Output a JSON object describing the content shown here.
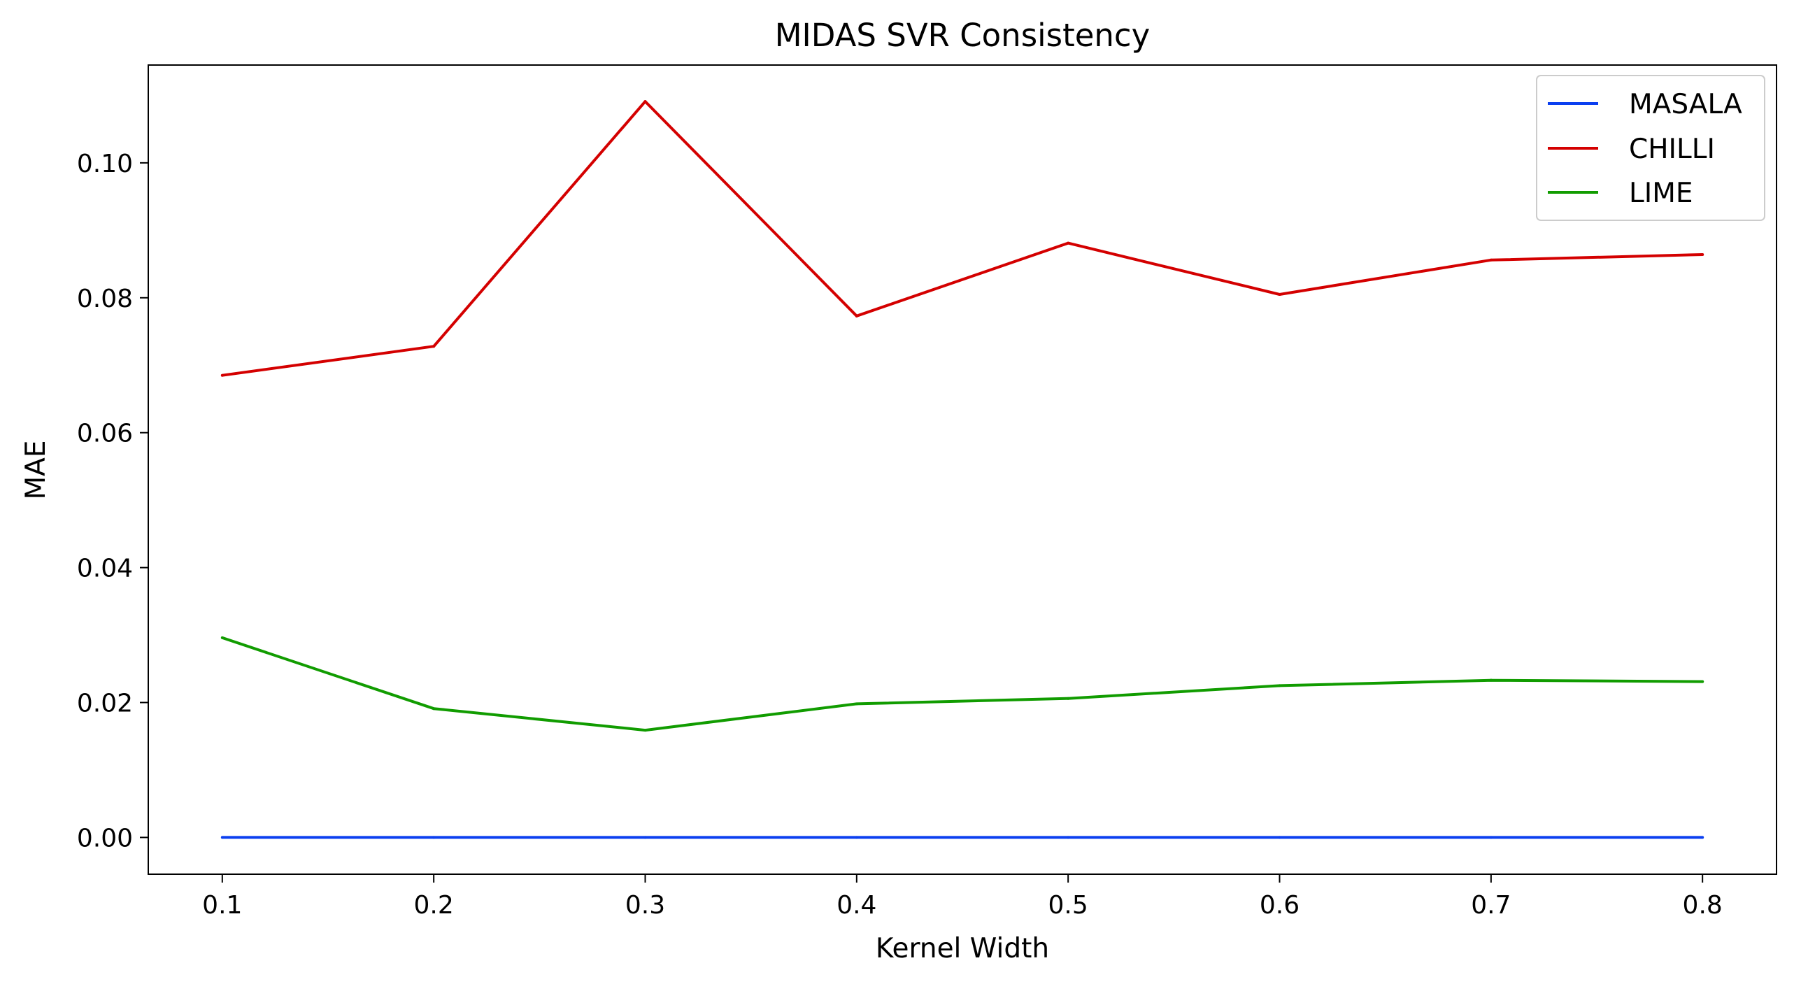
{
  "chart_data": {
    "type": "line",
    "title": "MIDAS SVR Consistency",
    "xlabel": "Kernel Width",
    "ylabel": "MAE",
    "x": [
      0.1,
      0.2,
      0.3,
      0.4,
      0.5,
      0.6,
      0.7,
      0.8
    ],
    "x_tick_labels": [
      "0.1",
      "0.2",
      "0.3",
      "0.4",
      "0.5",
      "0.6",
      "0.7",
      "0.8"
    ],
    "y_ticks": [
      0.0,
      0.02,
      0.04,
      0.06,
      0.08,
      0.1
    ],
    "y_tick_labels": [
      "0.00",
      "0.02",
      "0.04",
      "0.06",
      "0.08",
      "0.10"
    ],
    "xlim": [
      0.065,
      0.835
    ],
    "ylim": [
      -0.00545,
      0.1145
    ],
    "grid": false,
    "legend_position": "top-right",
    "series": [
      {
        "name": "MASALA",
        "color": "#0b3ff0",
        "values": [
          0,
          0,
          0,
          0,
          0,
          0,
          0,
          0
        ]
      },
      {
        "name": "CHILLI",
        "color": "#d40000",
        "values": [
          0.0685,
          0.0728,
          0.1091,
          0.0773,
          0.0881,
          0.0805,
          0.0856,
          0.0864
        ]
      },
      {
        "name": "LIME",
        "color": "#119c00",
        "values": [
          0.0296,
          0.0191,
          0.0159,
          0.0198,
          0.0206,
          0.0225,
          0.0233,
          0.0231
        ]
      }
    ]
  }
}
